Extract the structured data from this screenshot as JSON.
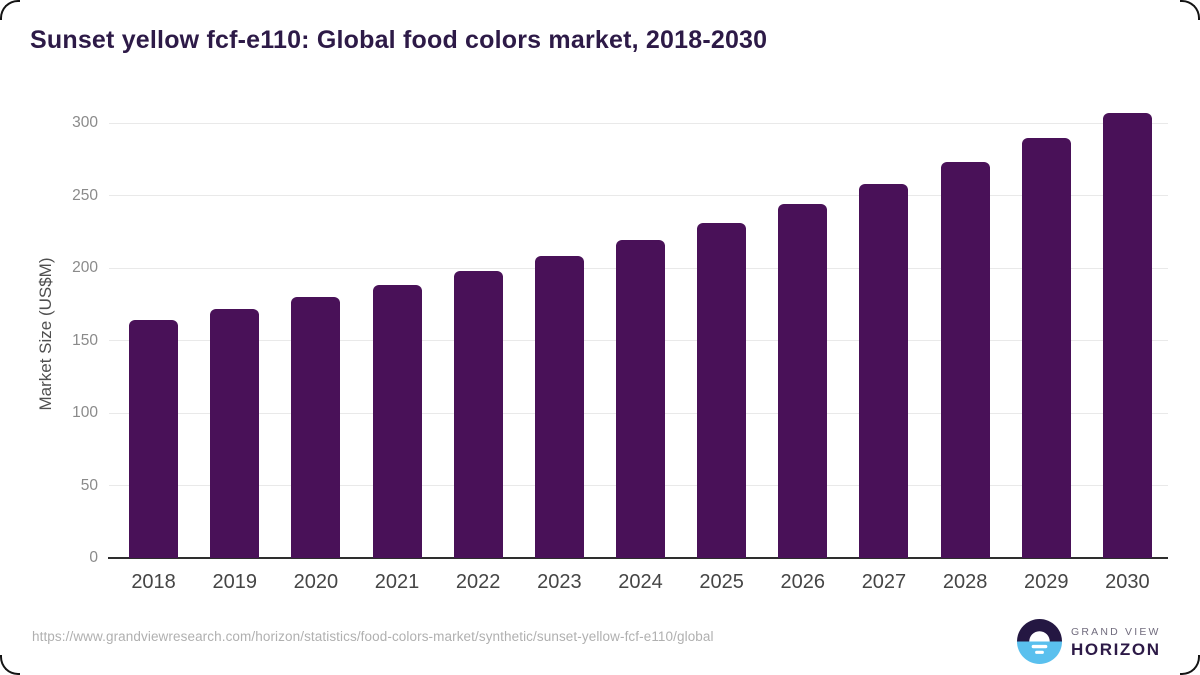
{
  "title": "Sunset yellow fcf-e110: Global food colors market, 2018-2030",
  "chart_data": {
    "type": "bar",
    "title": "Sunset yellow fcf-e110: Global food colors market, 2018-2030",
    "categories": [
      "2018",
      "2019",
      "2020",
      "2021",
      "2022",
      "2023",
      "2024",
      "2025",
      "2026",
      "2027",
      "2028",
      "2029",
      "2030"
    ],
    "values": [
      164,
      172,
      180,
      188,
      198,
      208,
      219,
      231,
      244,
      258,
      273,
      290,
      307
    ],
    "series_name": "Market Size",
    "xlabel": "",
    "ylabel": "Market Size (US$M)",
    "ylim": [
      0,
      300
    ],
    "yticks": [
      0,
      50,
      100,
      150,
      200,
      250,
      300
    ],
    "grid": "horizontal",
    "legend": "none",
    "bar_color": "#491158"
  },
  "footer": {
    "source_url": "https://www.grandviewresearch.com/horizon/statistics/food-colors-market/synthetic/sunset-yellow-fcf-e110/global",
    "logo": {
      "brand_top": "GRAND VIEW",
      "brand_bottom": "HORIZON"
    }
  },
  "colors": {
    "title_text": "#2d1a47",
    "bar": "#491158",
    "axis_line": "#2e2e2e",
    "gridline": "#e9e9e9",
    "y_tick_text": "#8a8a8a",
    "x_tick_text": "#454545",
    "url_text": "#b0b0b0",
    "logo_dark": "#241742",
    "logo_blue": "#5ac0ee"
  }
}
